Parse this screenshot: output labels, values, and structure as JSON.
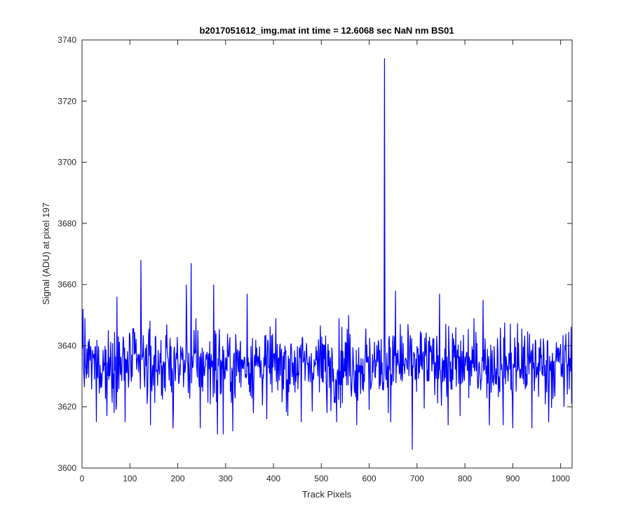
{
  "chart_data": {
    "type": "line",
    "title": "b2017051612_img.mat int time = 12.6068 sec  NaN nm BS01",
    "xlabel": "Track Pixels",
    "ylabel": "Signal (ADU) at pixel 197",
    "xlim": [
      0,
      1024
    ],
    "ylim": [
      3600,
      3740
    ],
    "xticks": [
      0,
      100,
      200,
      300,
      400,
      500,
      600,
      700,
      800,
      900,
      1000
    ],
    "yticks": [
      3600,
      3620,
      3640,
      3660,
      3680,
      3700,
      3720,
      3740
    ],
    "grid": false,
    "series": [
      {
        "color": "#0000ff",
        "baseline": 3634,
        "noise_amplitude": 6,
        "x": [
          1,
          1024
        ],
        "notable_points": [
          {
            "x": 2,
            "y": 3652
          },
          {
            "x": 30,
            "y": 3615
          },
          {
            "x": 52,
            "y": 3617
          },
          {
            "x": 73,
            "y": 3656
          },
          {
            "x": 90,
            "y": 3615
          },
          {
            "x": 123,
            "y": 3668
          },
          {
            "x": 143,
            "y": 3614
          },
          {
            "x": 190,
            "y": 3613
          },
          {
            "x": 218,
            "y": 3660
          },
          {
            "x": 228,
            "y": 3667
          },
          {
            "x": 247,
            "y": 3613
          },
          {
            "x": 275,
            "y": 3660
          },
          {
            "x": 283,
            "y": 3611
          },
          {
            "x": 295,
            "y": 3611
          },
          {
            "x": 315,
            "y": 3612
          },
          {
            "x": 345,
            "y": 3657
          },
          {
            "x": 386,
            "y": 3616
          },
          {
            "x": 430,
            "y": 3617
          },
          {
            "x": 458,
            "y": 3615
          },
          {
            "x": 512,
            "y": 3618
          },
          {
            "x": 532,
            "y": 3615
          },
          {
            "x": 557,
            "y": 3650
          },
          {
            "x": 574,
            "y": 3614
          },
          {
            "x": 600,
            "y": 3619
          },
          {
            "x": 632,
            "y": 3734
          },
          {
            "x": 645,
            "y": 3615
          },
          {
            "x": 655,
            "y": 3658
          },
          {
            "x": 690,
            "y": 3606
          },
          {
            "x": 747,
            "y": 3657
          },
          {
            "x": 765,
            "y": 3614
          },
          {
            "x": 790,
            "y": 3617
          },
          {
            "x": 838,
            "y": 3655
          },
          {
            "x": 851,
            "y": 3614
          },
          {
            "x": 880,
            "y": 3614
          },
          {
            "x": 900,
            "y": 3613
          },
          {
            "x": 940,
            "y": 3613
          },
          {
            "x": 975,
            "y": 3615
          },
          {
            "x": 1007,
            "y": 3620
          }
        ]
      }
    ]
  }
}
